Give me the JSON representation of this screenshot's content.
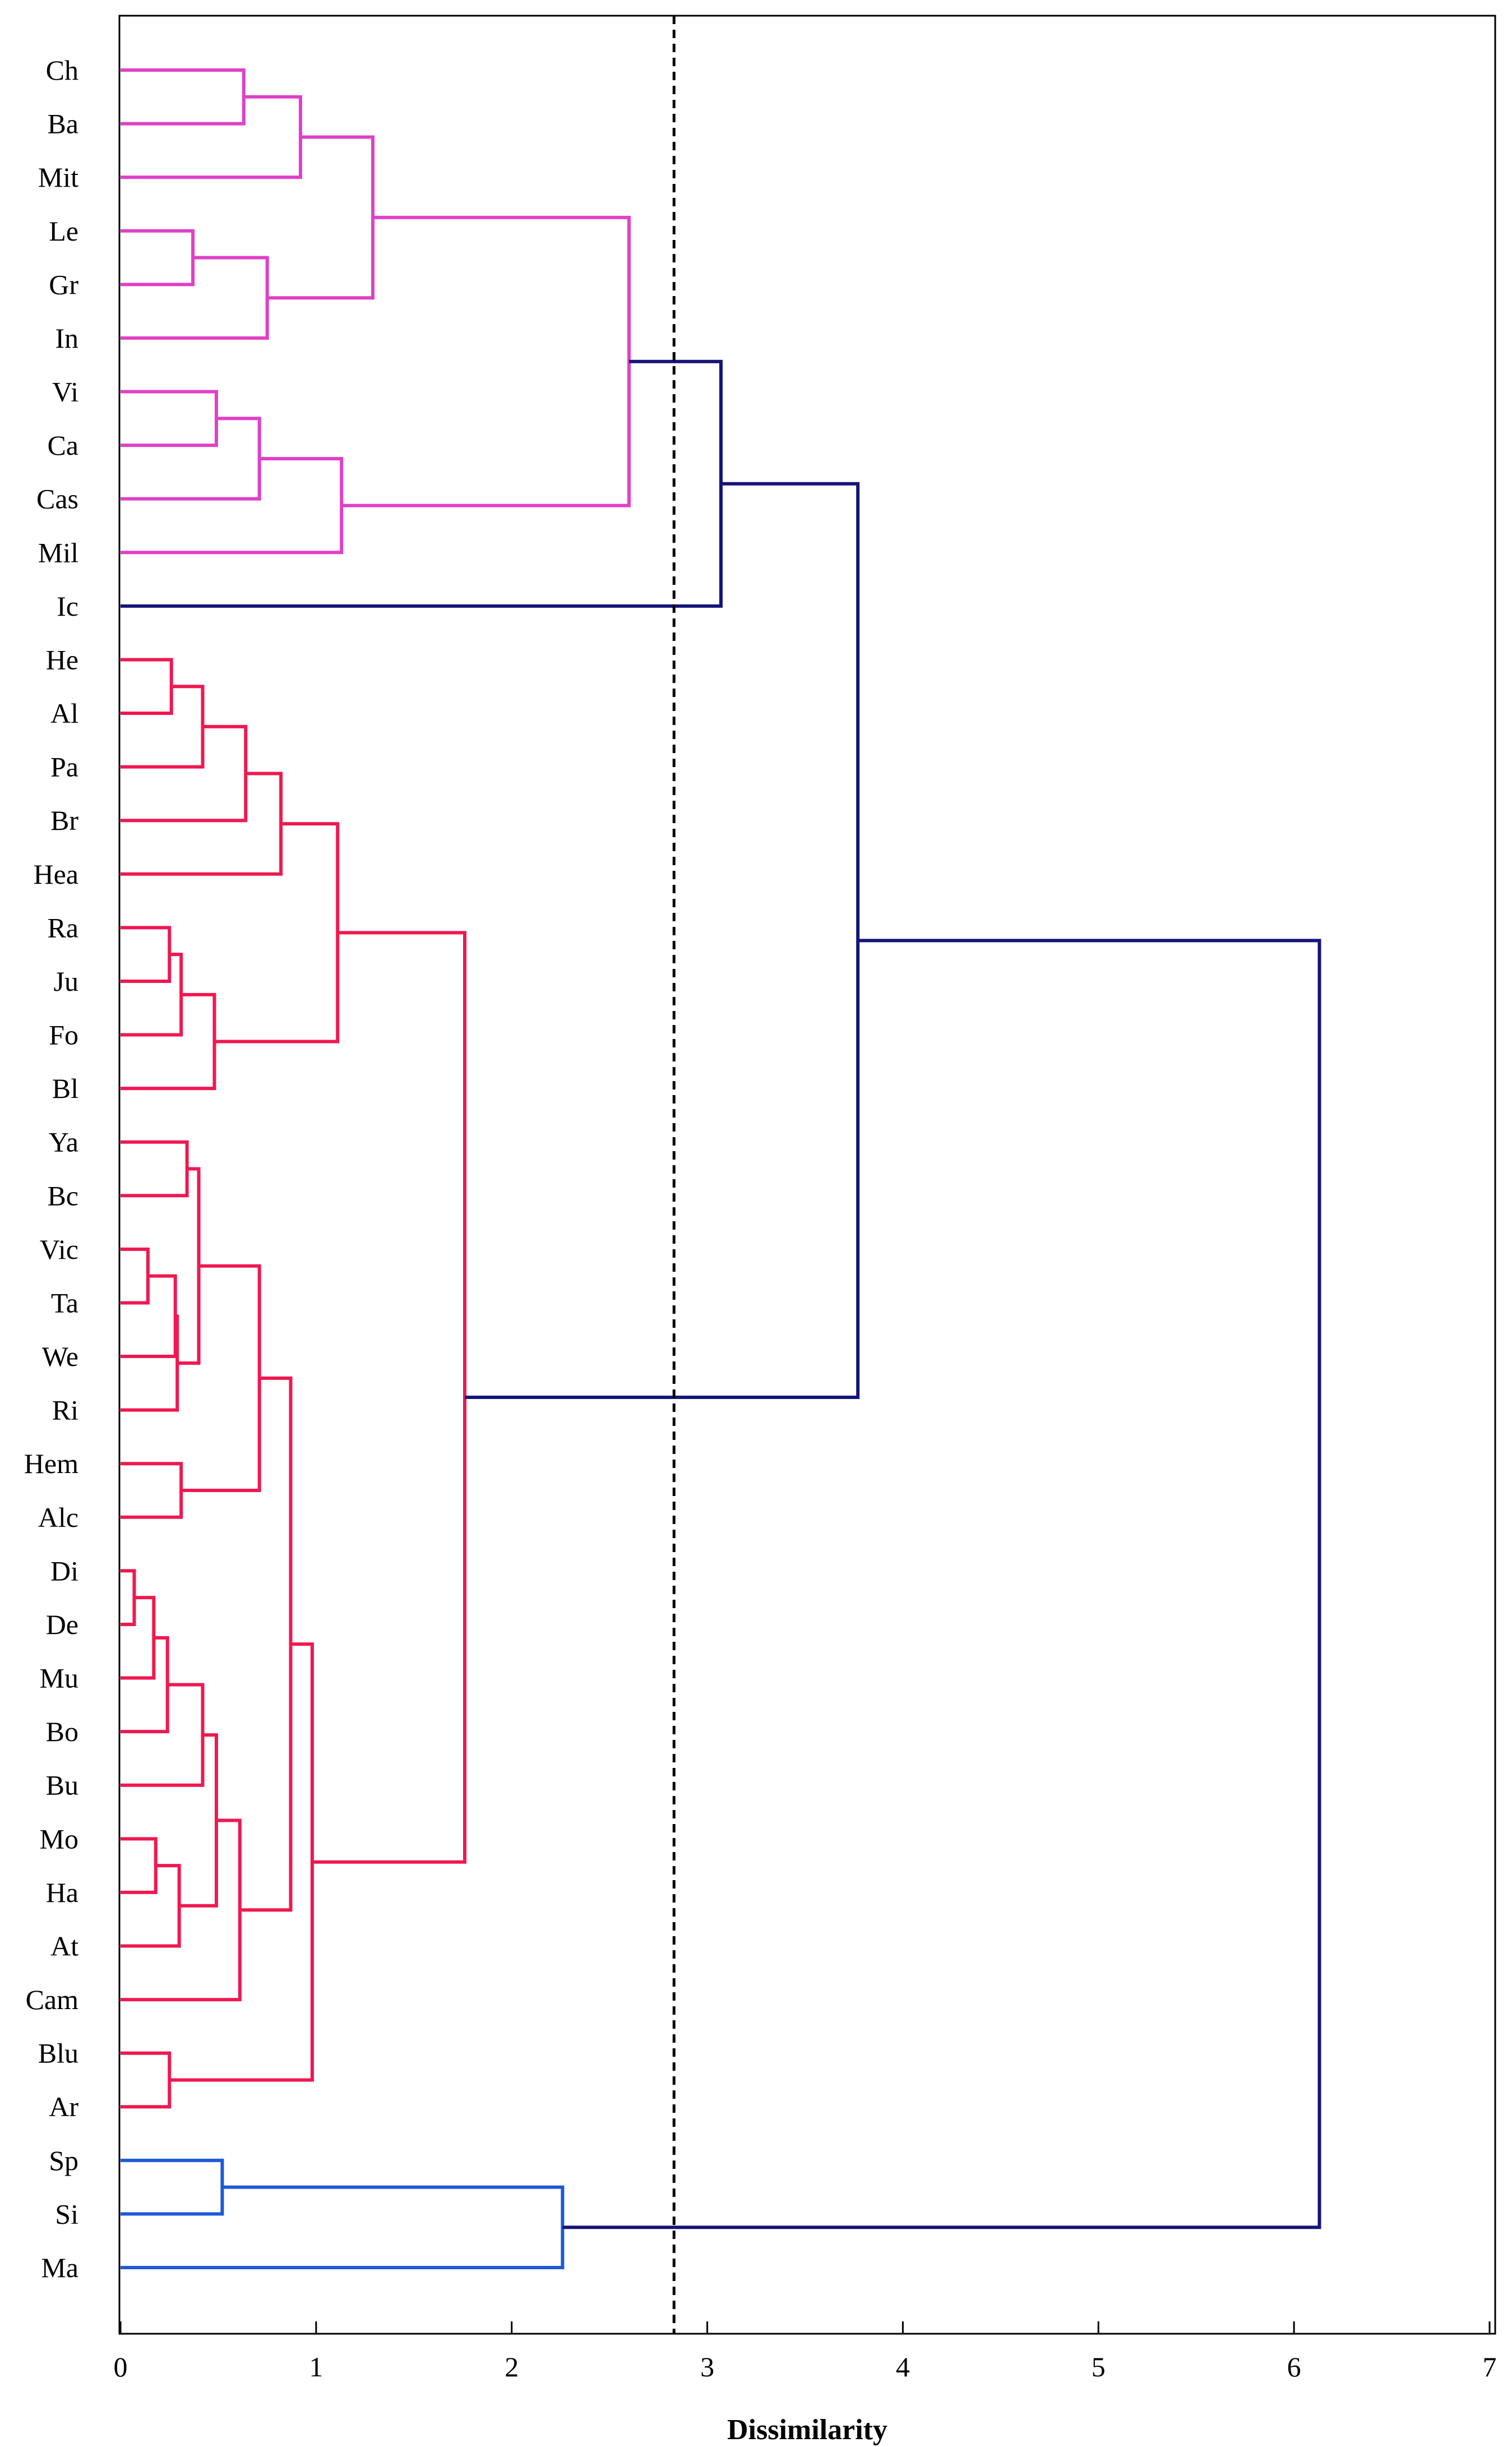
{
  "chart_data": {
    "type": "dendrogram",
    "orientation": "horizontal",
    "xlabel": "Dissimilarity",
    "xlim": [
      0,
      7
    ],
    "xticks": [
      "0",
      "1",
      "2",
      "3",
      "4",
      "5",
      "6",
      "7"
    ],
    "cut_line": 2.83,
    "leaves": [
      "Ch",
      "Ba",
      "Mit",
      "Le",
      "Gr",
      "In",
      "Vi",
      "Ca",
      "Cas",
      "Mil",
      "Ic",
      "He",
      "Al",
      "Pa",
      "Br",
      "Hea",
      "Ra",
      "Ju",
      "Fo",
      "Bl",
      "Ya",
      "Bc",
      "Vic",
      "Ta",
      "We",
      "Ri",
      "Hem",
      "Alc",
      "Di",
      "De",
      "Mu",
      "Bo",
      "Bu",
      "Mo",
      "Ha",
      "At",
      "Cam",
      "Blu",
      "Ar",
      "Sp",
      "Si",
      "Ma"
    ],
    "colors": {
      "magenta": "#E040C8",
      "red": "#F01850",
      "blue": "#1E5AD8",
      "navy": "#14147A",
      "cut": "#000000"
    },
    "merges": [
      {
        "id": "m1",
        "a": "Ch",
        "b": "Ba",
        "h": 0.63,
        "c": "magenta"
      },
      {
        "id": "m2",
        "a": "m1",
        "b": "Mit",
        "h": 0.92,
        "c": "magenta"
      },
      {
        "id": "m3",
        "a": "Le",
        "b": "Gr",
        "h": 0.37,
        "c": "magenta"
      },
      {
        "id": "m4",
        "a": "m3",
        "b": "In",
        "h": 0.75,
        "c": "magenta"
      },
      {
        "id": "m5",
        "a": "m2",
        "b": "m4",
        "h": 1.29,
        "c": "magenta"
      },
      {
        "id": "m6",
        "a": "Vi",
        "b": "Ca",
        "h": 0.49,
        "c": "magenta"
      },
      {
        "id": "m7",
        "a": "m6",
        "b": "Cas",
        "h": 0.71,
        "c": "magenta"
      },
      {
        "id": "m8",
        "a": "m7",
        "b": "Mil",
        "h": 1.13,
        "c": "magenta"
      },
      {
        "id": "m9",
        "a": "m5",
        "b": "m8",
        "h": 2.6,
        "c": "magenta"
      },
      {
        "id": "m10",
        "a": "m9",
        "b": "Ic",
        "h": 3.07,
        "c": "navy"
      },
      {
        "id": "r1",
        "a": "He",
        "b": "Al",
        "h": 0.26,
        "c": "red"
      },
      {
        "id": "r2",
        "a": "r1",
        "b": "Pa",
        "h": 0.42,
        "c": "red"
      },
      {
        "id": "r3",
        "a": "r2",
        "b": "Br",
        "h": 0.64,
        "c": "red"
      },
      {
        "id": "r4",
        "a": "r3",
        "b": "Hea",
        "h": 0.82,
        "c": "red"
      },
      {
        "id": "r5",
        "a": "Ra",
        "b": "Ju",
        "h": 0.25,
        "c": "red"
      },
      {
        "id": "r6",
        "a": "r5",
        "b": "Fo",
        "h": 0.31,
        "c": "red"
      },
      {
        "id": "r7",
        "a": "r6",
        "b": "Bl",
        "h": 0.48,
        "c": "red"
      },
      {
        "id": "r8",
        "a": "r4",
        "b": "r7",
        "h": 1.11,
        "c": "red"
      },
      {
        "id": "r9",
        "a": "Ya",
        "b": "Bc",
        "h": 0.34,
        "c": "red"
      },
      {
        "id": "r10",
        "a": "Vic",
        "b": "Ta",
        "h": 0.14,
        "c": "red"
      },
      {
        "id": "r11",
        "a": "r10",
        "b": "We",
        "h": 0.28,
        "c": "red"
      },
      {
        "id": "r12",
        "a": "r11",
        "b": "Ri",
        "h": 0.29,
        "c": "red"
      },
      {
        "id": "r13",
        "a": "r9",
        "b": "r12",
        "h": 0.4,
        "c": "red"
      },
      {
        "id": "r14",
        "a": "Hem",
        "b": "Alc",
        "h": 0.31,
        "c": "red"
      },
      {
        "id": "r15",
        "a": "r13",
        "b": "r14",
        "h": 0.71,
        "c": "red"
      },
      {
        "id": "r16",
        "a": "Di",
        "b": "De",
        "h": 0.07,
        "c": "red"
      },
      {
        "id": "r17",
        "a": "r16",
        "b": "Mu",
        "h": 0.17,
        "c": "red"
      },
      {
        "id": "r18",
        "a": "r17",
        "b": "Bo",
        "h": 0.24,
        "c": "red"
      },
      {
        "id": "r19",
        "a": "r18",
        "b": "Bu",
        "h": 0.42,
        "c": "red"
      },
      {
        "id": "r20",
        "a": "Mo",
        "b": "Ha",
        "h": 0.18,
        "c": "red"
      },
      {
        "id": "r21",
        "a": "r20",
        "b": "At",
        "h": 0.3,
        "c": "red"
      },
      {
        "id": "r22",
        "a": "r19",
        "b": "r21",
        "h": 0.49,
        "c": "red"
      },
      {
        "id": "r23",
        "a": "r22",
        "b": "Cam",
        "h": 0.61,
        "c": "red"
      },
      {
        "id": "r24",
        "a": "r15",
        "b": "r23",
        "h": 0.87,
        "c": "red"
      },
      {
        "id": "r25",
        "a": "Blu",
        "b": "Ar",
        "h": 0.25,
        "c": "red"
      },
      {
        "id": "r26",
        "a": "r24",
        "b": "r25",
        "h": 0.98,
        "c": "red"
      },
      {
        "id": "r27",
        "a": "r8",
        "b": "r26",
        "h": 1.76,
        "c": "red"
      },
      {
        "id": "t1",
        "a": "m10",
        "b": "r27",
        "h": 3.77,
        "c": "navy"
      },
      {
        "id": "b1",
        "a": "Sp",
        "b": "Si",
        "h": 0.52,
        "c": "blue"
      },
      {
        "id": "b2",
        "a": "b1",
        "b": "Ma",
        "h": 2.26,
        "c": "blue"
      },
      {
        "id": "root",
        "a": "t1",
        "b": "b2",
        "h": 6.13,
        "c": "navy"
      }
    ]
  }
}
